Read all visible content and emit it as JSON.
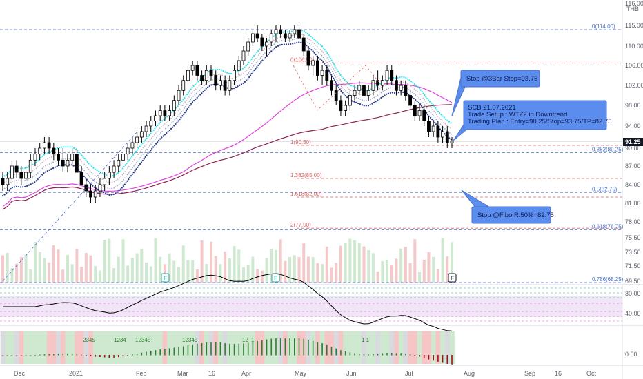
{
  "currency": "THB",
  "price_axis": {
    "top_label": "116.00",
    "ticks": [
      "115.00",
      "110.00",
      "106.00",
      "102.00",
      "98.00",
      "94.00",
      "90.00",
      "87.00",
      "84.00",
      "81.00",
      "78.00",
      "75.50",
      "73.50",
      "71.50",
      "69.50"
    ],
    "last_price": "91.25"
  },
  "time_axis": [
    "Dec",
    "2021",
    "Feb",
    "Mar",
    "16",
    "Apr",
    "May",
    "Jun",
    "Jul",
    "Aug",
    "Sep",
    "16",
    "Oct"
  ],
  "fib_left": [
    {
      "label": "0(106.50)",
      "price": 106.5
    },
    {
      "label": "1(90.50)",
      "price": 90.5
    },
    {
      "label": "1.382(85.00)",
      "price": 85.0
    },
    {
      "label": "1.618(82.00)",
      "price": 82.0
    },
    {
      "label": "2(77.00)",
      "price": 77.0
    }
  ],
  "fib_right": [
    {
      "label": "0(114.00)",
      "price": 114.0
    },
    {
      "label": "0.382(89.25)",
      "price": 89.25
    },
    {
      "label": "0.5(82.75)",
      "price": 82.75
    },
    {
      "label": "0.618(76.75)",
      "price": 76.75
    },
    {
      "label": "0.786(68.25)",
      "price": 68.25
    }
  ],
  "notes": {
    "stop_3bar": "Stop @3Bar Stop=93.75",
    "setup": [
      "SCB 21.07.2021",
      "Trade Setup : WTZ2 in Downtrend",
      "Trading Plan : Entry=90.25/Stop=93.75/TP=82.75"
    ],
    "stop_fibo": "Stop @Fibo R.50%=82.75"
  },
  "event_marks": [
    "E",
    "E",
    "E"
  ],
  "indicator1": {
    "ticks": [
      "80.00",
      "40.00"
    ]
  },
  "indicator2": {
    "ticks": [
      "0.00"
    ]
  },
  "sequence_counts": [
    "2345",
    "1234",
    "12345",
    "12345",
    "12",
    "1",
    "1 1"
  ],
  "colors": {
    "up": "#ffffff",
    "down": "#000000",
    "magenta": "#e040e0",
    "maroon": "#8b2252",
    "cyan": "#40e0e8",
    "navy": "#2b3f8c",
    "fib": "#e06060",
    "fibblue": "#4a6fd0",
    "note": "#5b8def"
  },
  "chart_data": {
    "type": "candlestick",
    "symbol": "SCB",
    "ylim": [
      69.5,
      116.0
    ],
    "x_labels": [
      "Dec",
      "2021",
      "Feb",
      "Mar",
      "16",
      "Apr",
      "May",
      "Jun",
      "Jul",
      "Aug",
      "Sep",
      "16",
      "Oct"
    ],
    "candles": [
      [
        85,
        86,
        83,
        84
      ],
      [
        84,
        86,
        83,
        85
      ],
      [
        85,
        88,
        84,
        87
      ],
      [
        87,
        88,
        85,
        86
      ],
      [
        86,
        87,
        84,
        85
      ],
      [
        85,
        87,
        84,
        86
      ],
      [
        86,
        89,
        85,
        88
      ],
      [
        88,
        90,
        87,
        89
      ],
      [
        89,
        91,
        88,
        90
      ],
      [
        90,
        92,
        89,
        91
      ],
      [
        91,
        92,
        89,
        90
      ],
      [
        90,
        91,
        88,
        89
      ],
      [
        89,
        90,
        87,
        88
      ],
      [
        88,
        90,
        86,
        87
      ],
      [
        87,
        89,
        86,
        88
      ],
      [
        88,
        90,
        87,
        89
      ],
      [
        89,
        90,
        86,
        86
      ],
      [
        86,
        87,
        84,
        84
      ],
      [
        84,
        85,
        82,
        83
      ],
      [
        83,
        84,
        81,
        82
      ],
      [
        82,
        84,
        81,
        83
      ],
      [
        83,
        85,
        82,
        84
      ],
      [
        84,
        86,
        83,
        85
      ],
      [
        85,
        87,
        84,
        86
      ],
      [
        86,
        88,
        85,
        87
      ],
      [
        87,
        89,
        86,
        88
      ],
      [
        88,
        90,
        87,
        89
      ],
      [
        89,
        91,
        88,
        90
      ],
      [
        90,
        92,
        89,
        91
      ],
      [
        91,
        93,
        90,
        92
      ],
      [
        92,
        94,
        91,
        93
      ],
      [
        93,
        95,
        92,
        94
      ],
      [
        94,
        96,
        93,
        95
      ],
      [
        95,
        97,
        94,
        96
      ],
      [
        96,
        98,
        95,
        97
      ],
      [
        97,
        98,
        95,
        96
      ],
      [
        96,
        98,
        95,
        97
      ],
      [
        97,
        100,
        96,
        99
      ],
      [
        99,
        102,
        98,
        101
      ],
      [
        101,
        104,
        100,
        103
      ],
      [
        103,
        106,
        102,
        105
      ],
      [
        105,
        107,
        104,
        106
      ],
      [
        106,
        107,
        103,
        104
      ],
      [
        104,
        105,
        102,
        103
      ],
      [
        103,
        106,
        102,
        105
      ],
      [
        105,
        106,
        103,
        104
      ],
      [
        104,
        105,
        101,
        102
      ],
      [
        102,
        104,
        101,
        103
      ],
      [
        103,
        104,
        100,
        101
      ],
      [
        101,
        104,
        100,
        103
      ],
      [
        103,
        106,
        102,
        105
      ],
      [
        105,
        108,
        104,
        107
      ],
      [
        107,
        110,
        106,
        109
      ],
      [
        109,
        112,
        108,
        111
      ],
      [
        111,
        114,
        110,
        113
      ],
      [
        113,
        115,
        111,
        112
      ],
      [
        112,
        113,
        109,
        110
      ],
      [
        110,
        112,
        108,
        111
      ],
      [
        111,
        114,
        110,
        113
      ],
      [
        113,
        115,
        111,
        114
      ],
      [
        114,
        115,
        112,
        113
      ],
      [
        113,
        114,
        111,
        112
      ],
      [
        112,
        114,
        111,
        113
      ],
      [
        113,
        115,
        112,
        114
      ],
      [
        114,
        115,
        111,
        112
      ],
      [
        112,
        113,
        108,
        109
      ],
      [
        109,
        110,
        105,
        106
      ],
      [
        106,
        108,
        104,
        107
      ],
      [
        107,
        108,
        103,
        104
      ],
      [
        104,
        106,
        102,
        105
      ],
      [
        105,
        106,
        102,
        103
      ],
      [
        103,
        104,
        100,
        101
      ],
      [
        101,
        102,
        98,
        99
      ],
      [
        99,
        100,
        96,
        97
      ],
      [
        97,
        99,
        96,
        98
      ],
      [
        98,
        101,
        97,
        100
      ],
      [
        100,
        102,
        99,
        101
      ],
      [
        101,
        103,
        100,
        102
      ],
      [
        102,
        103,
        99,
        100
      ],
      [
        100,
        102,
        99,
        101
      ],
      [
        101,
        104,
        100,
        103
      ],
      [
        103,
        105,
        101,
        102
      ],
      [
        102,
        104,
        101,
        103
      ],
      [
        103,
        106,
        102,
        105
      ],
      [
        105,
        106,
        102,
        103
      ],
      [
        103,
        104,
        100,
        101
      ],
      [
        101,
        103,
        100,
        102
      ],
      [
        102,
        103,
        99,
        100
      ],
      [
        100,
        101,
        97,
        98
      ],
      [
        98,
        99,
        95,
        96
      ],
      [
        96,
        98,
        95,
        97
      ],
      [
        97,
        98,
        94,
        95
      ],
      [
        95,
        96,
        92,
        93
      ],
      [
        93,
        95,
        92,
        94
      ],
      [
        94,
        95,
        91,
        92
      ],
      [
        92,
        94,
        91,
        93
      ],
      [
        93,
        94,
        90,
        91
      ],
      [
        91,
        92,
        90,
        91.25
      ]
    ],
    "fibonacci_extension": [
      {
        "level": 0,
        "price": 106.5
      },
      {
        "level": 1,
        "price": 90.5
      },
      {
        "level": 1.382,
        "price": 85.0
      },
      {
        "level": 1.618,
        "price": 82.0
      },
      {
        "level": 2,
        "price": 77.0
      }
    ],
    "fibonacci_retracement": [
      {
        "level": 0,
        "price": 114.0
      },
      {
        "level": 0.382,
        "price": 89.25
      },
      {
        "level": 0.5,
        "price": 82.75
      },
      {
        "level": 0.618,
        "price": 76.75
      },
      {
        "level": 0.786,
        "price": 68.25
      }
    ],
    "trade_plan": {
      "entry": 90.25,
      "stop": 93.75,
      "take_profit": 82.75
    },
    "grid": false
  }
}
